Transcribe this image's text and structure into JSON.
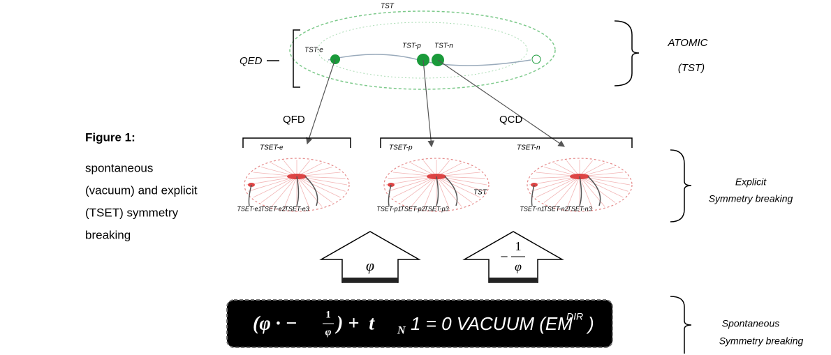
{
  "caption": {
    "title": "Figure 1:",
    "lines": [
      "spontaneous",
      "(vacuum) and explicit",
      "(TSET) symmetry",
      "breaking"
    ]
  },
  "atom": {
    "top": "TST",
    "left": "QED",
    "nodes": [
      "TST-e",
      "TST-p",
      "TST-n"
    ],
    "right": [
      "ATOMIC",
      "(TST)"
    ]
  },
  "branches": {
    "left": "QFD",
    "right": "QCD"
  },
  "groups": [
    {
      "label": "TSET-e",
      "sub": [
        "TSET-e1",
        "TSET-e2",
        "TSET-e3"
      ]
    },
    {
      "label": "TSET-p",
      "sub": [
        "TSET-p1",
        "TSET-p2",
        "TSET-p3"
      ]
    },
    {
      "label": "TSET-n",
      "sub": [
        "TSET-n1",
        "TSET-n2",
        "TSET-n3"
      ]
    }
  ],
  "inner": "TST",
  "explicit": [
    "Explicit",
    "Symmetry breaking"
  ],
  "arrows": {
    "left": "φ",
    "right_sign": "−",
    "right_num": "1",
    "right_den": "φ"
  },
  "equation": {
    "open": "(φ · −",
    "num": "1",
    "den": "φ",
    "mid": ") +  t",
    "sub": "N",
    "rest": "1 = 0 VACUUM (EM",
    "sup": "DIR",
    "close": ")"
  },
  "spontaneous": [
    "Spontaneous",
    "Symmetry breaking"
  ]
}
